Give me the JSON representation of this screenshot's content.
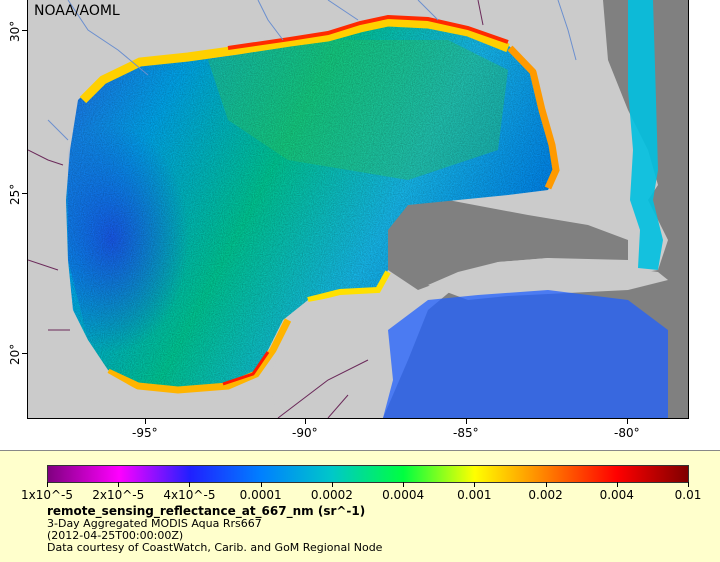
{
  "map": {
    "credit": "NOAA/AOML",
    "latitude_labels": [
      "30°",
      "25°",
      "20°"
    ],
    "longitude_labels": [
      "-95°",
      "-90°",
      "-85°",
      "-80°"
    ],
    "colors": {
      "land": "#cbcbcb",
      "no_data": "#808080",
      "rivers": "#6b8fcf",
      "borders": "#6b2a5a"
    }
  },
  "legend": {
    "colorbar_stops": [
      "#800080",
      "#ff00ff",
      "#2020ff",
      "#0080ff",
      "#00c8c8",
      "#00ff40",
      "#ffff00",
      "#ff8000",
      "#ff0000",
      "#800000"
    ],
    "tick_labels": [
      "1x10^-5",
      "2x10^-5",
      "4x10^-5",
      "0.0001",
      "0.0002",
      "0.0004",
      "0.001",
      "0.002",
      "0.004",
      "0.01"
    ],
    "title": "remote_sensing_reflectance_at_667_nm (sr^-1)",
    "line1": "3-Day Aggregated MODIS Aqua Rrs667",
    "line2": "(2012-04-25T00:00:00Z)",
    "line3": "Data courtesy of CoastWatch, Carib. and GoM Regional Node"
  }
}
